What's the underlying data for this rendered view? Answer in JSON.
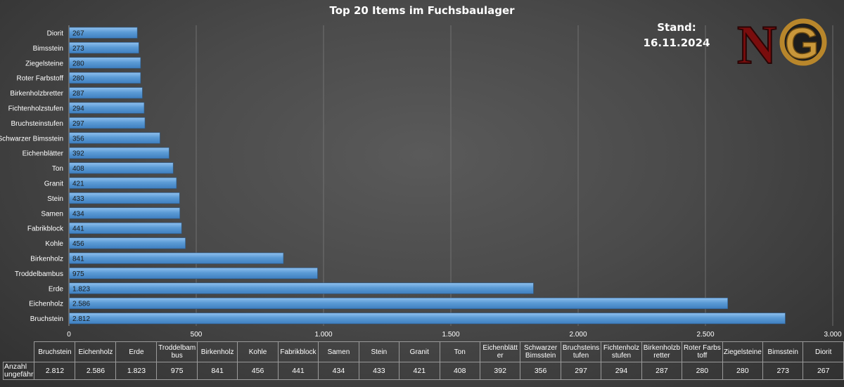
{
  "title": "Top 20 Items im Fuchsbaulager",
  "stand": {
    "label": "Stand:",
    "date": "16.11.2024"
  },
  "logo": {
    "text_n": "N",
    "text_g": "G",
    "color_n": "#7a0d0d",
    "color_g": "#b8862b"
  },
  "chart_data": {
    "type": "bar",
    "orientation": "horizontal",
    "categories": [
      "Bruchstein",
      "Eichenholz",
      "Erde",
      "Troddelbambus",
      "Birkenholz",
      "Kohle",
      "Fabrikblock",
      "Samen",
      "Stein",
      "Granit",
      "Ton",
      "Eichenblätter",
      "Schwarzer Bimsstein",
      "Bruchsteinstufen",
      "Fichtenholzstufen",
      "Birkenholzbretter",
      "Roter Farbstoff",
      "Ziegelsteine",
      "Bimsstein",
      "Diorit"
    ],
    "values": [
      2812,
      2586,
      1823,
      975,
      841,
      456,
      441,
      434,
      433,
      421,
      408,
      392,
      356,
      297,
      294,
      287,
      280,
      280,
      273,
      267
    ],
    "value_labels": [
      "2.812",
      "2.586",
      "1.823",
      "975",
      "841",
      "456",
      "441",
      "434",
      "433",
      "421",
      "408",
      "392",
      "356",
      "297",
      "294",
      "287",
      "280",
      "280",
      "273",
      "267"
    ],
    "xlim": [
      0,
      3000
    ],
    "xticks": [
      0,
      500,
      1000,
      1500,
      2000,
      2500,
      3000
    ],
    "xtick_labels": [
      "0",
      "500",
      "1.000",
      "1.500",
      "2.000",
      "2.500",
      "3.000"
    ],
    "grid": true,
    "bar_color": "#5b9bd5"
  },
  "table": {
    "row_header": "Anzahl ungefähr",
    "headers": [
      "Bruchstein",
      "Eichenholz",
      "Erde",
      "Troddelbambus",
      "Birkenholz",
      "Kohle",
      "Fabrikblock",
      "Samen",
      "Stein",
      "Granit",
      "Ton",
      "Eichenblätter",
      "Schwarzer Bimsstein",
      "Bruchsteinstufen",
      "Fichtenholzstufen",
      "Birkenholzbretter",
      "Roter Farbstoff",
      "Ziegelsteine",
      "Bimsstein",
      "Diorit"
    ],
    "values": [
      "2.812",
      "2.586",
      "1.823",
      "975",
      "841",
      "456",
      "441",
      "434",
      "433",
      "421",
      "408",
      "392",
      "356",
      "297",
      "294",
      "287",
      "280",
      "280",
      "273",
      "267"
    ]
  }
}
